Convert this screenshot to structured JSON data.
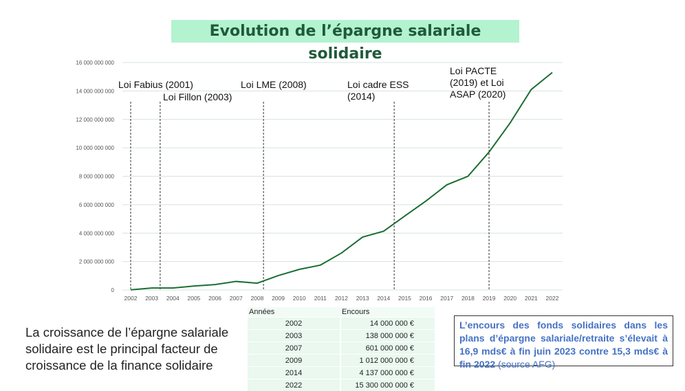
{
  "title": "Evolution de l’épargne salariale solidaire",
  "chart_data": {
    "type": "line",
    "x": [
      "2002",
      "2003",
      "2004",
      "2005",
      "2006",
      "2007",
      "2008",
      "2009",
      "2010",
      "2011",
      "2012",
      "2013",
      "2014",
      "2015",
      "2016",
      "2017",
      "2018",
      "2019",
      "2020",
      "2021",
      "2022"
    ],
    "series": [
      {
        "values": [
          14000000,
          138000000,
          140000000,
          280000000,
          380000000,
          601000000,
          480000000,
          1012000000,
          1450000000,
          1750000000,
          2600000000,
          3720000000,
          4137000000,
          5200000000,
          6250000000,
          7400000000,
          8000000000,
          9700000000,
          11750000000,
          14100000000,
          15300000000
        ],
        "color": "#1a6e32"
      }
    ],
    "ylim": [
      0,
      16000000000
    ],
    "yticks": [
      "0",
      "2 000 000 000",
      "4 000 000 000",
      "6 000 000 000",
      "8 000 000 000",
      "10 000 000 000",
      "12 000 000 000",
      "14 000 000 000",
      "16 000 000 000"
    ],
    "grid": true,
    "annotations": [
      {
        "year": 2002.0,
        "lines": [
          "Loi Fabius (2001)"
        ]
      },
      {
        "year": 2003.4,
        "lines": [
          "Loi Fillon (2003)"
        ]
      },
      {
        "year": 2008.3,
        "lines": [
          "Loi LME (2008)"
        ]
      },
      {
        "year": 2014.5,
        "lines": [
          "Loi cadre ESS",
          "(2014)"
        ]
      },
      {
        "year": 2019.0,
        "lines": [
          "Loi PACTE",
          "(2019) et Loi",
          "ASAP (2020)"
        ]
      }
    ]
  },
  "lead_text": "La croissance de l’épargne salariale solidaire est le principal facteur de croissance de la finance solidaire",
  "table": {
    "headers": [
      "Années",
      "Encours"
    ],
    "rows": [
      [
        "2002",
        "14 000 000 €"
      ],
      [
        "2003",
        "138 000 000 €"
      ],
      [
        "2007",
        "601 000 000 €"
      ],
      [
        "2009",
        "1 012 000 000 €"
      ],
      [
        "2014",
        "4 137 000 000 €"
      ],
      [
        "2022",
        "15 300 000 000 €"
      ]
    ]
  },
  "note": {
    "bold": "L’encours des fonds solidaires dans les plans d’épargne salariale/retraite s’élevait à 16,9 mds€ à fin juin 2023 contre 15,3 mds€ à fin 2022",
    "source": " (source AFG)"
  }
}
